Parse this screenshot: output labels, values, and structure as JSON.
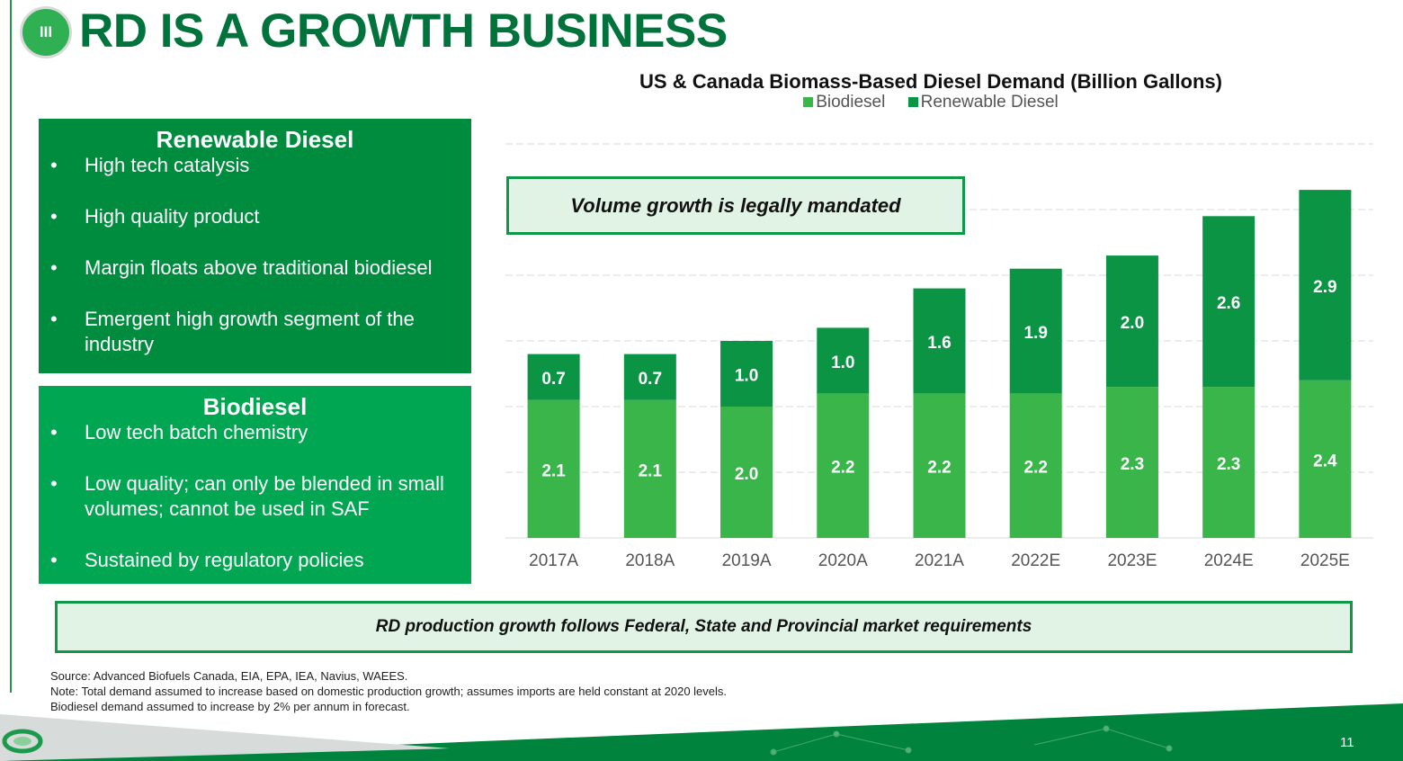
{
  "header": {
    "section_number": "III",
    "title": "RD IS A GROWTH BUSINESS"
  },
  "panels": {
    "renewable_diesel": {
      "title": "Renewable Diesel",
      "bullets": [
        "High tech catalysis",
        "High quality product",
        "Margin floats above traditional biodiesel",
        "Emergent high growth segment of the industry"
      ]
    },
    "biodiesel": {
      "title": "Biodiesel",
      "bullets": [
        "Low tech batch chemistry",
        "Low quality; can only be blended in small volumes; cannot be used in SAF",
        "Sustained by regulatory policies"
      ]
    }
  },
  "callouts": {
    "top": "Volume growth is legally mandated",
    "bottom": "RD production growth follows Federal, State and Provincial market requirements"
  },
  "chart_data": {
    "type": "bar",
    "stacked": true,
    "title": "US & Canada Biomass-Based Diesel Demand (Billion Gallons)",
    "categories": [
      "2017A",
      "2018A",
      "2019A",
      "2020A",
      "2021A",
      "2022E",
      "2023E",
      "2024E",
      "2025E"
    ],
    "series": [
      {
        "name": "Biodiesel",
        "color": "#39b54a",
        "values": [
          2.1,
          2.1,
          2.0,
          2.2,
          2.2,
          2.2,
          2.3,
          2.3,
          2.4
        ]
      },
      {
        "name": "Renewable Diesel",
        "color": "#0b9444",
        "values": [
          0.7,
          0.7,
          1.0,
          1.0,
          1.6,
          1.9,
          2.0,
          2.6,
          2.9
        ]
      }
    ],
    "ylim": [
      0,
      6
    ],
    "grid": true,
    "legend_position": "top",
    "xlabel": "",
    "ylabel": ""
  },
  "notes": [
    "Source: Advanced Biofuels Canada, EIA, EPA, IEA, Navius, WAEES.",
    "Note: Total demand assumed to increase based on domestic production growth; assumes imports are held constant at 2020 levels.",
    "Biodiesel demand assumed to increase by 2% per annum in forecast."
  ],
  "footer": {
    "page_number": "11",
    "logo_icon": "recycle-logo-icon",
    "accent_color": "#00843d"
  }
}
